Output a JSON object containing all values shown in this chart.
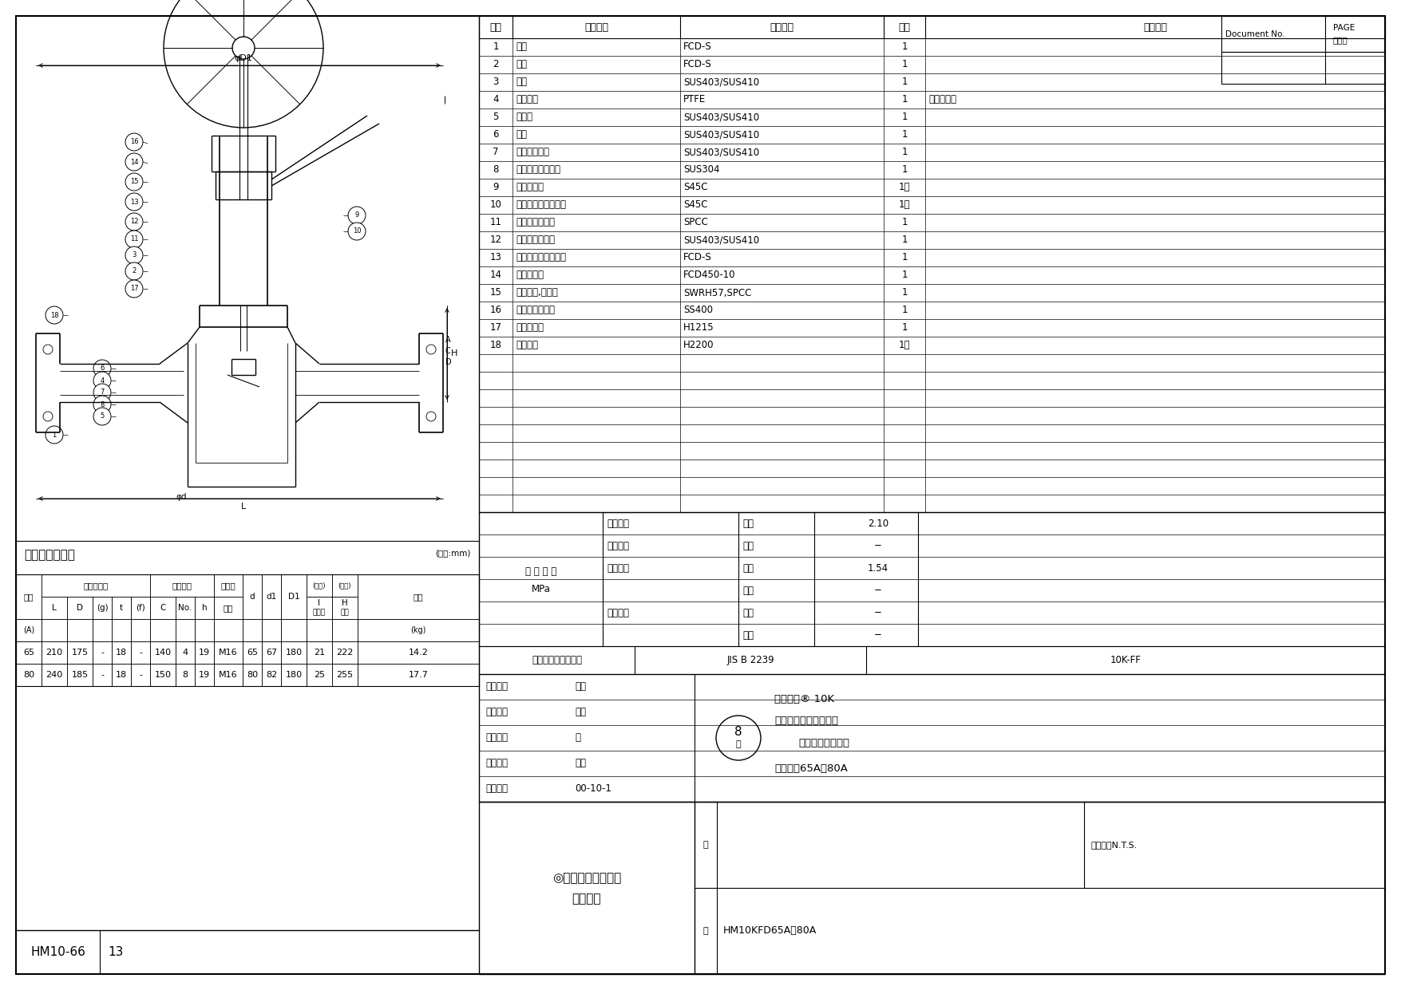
{
  "doc_no_label": "Document No.",
  "page_label": "PAGE\nページ",
  "parts_header": [
    "品番",
    "品　　名",
    "材　　質",
    "数量",
    "備　　考"
  ],
  "parts": [
    [
      "1",
      "弁算",
      "FCD-S",
      "1",
      ""
    ],
    [
      "2",
      "ふた",
      "FCD-S",
      "1",
      ""
    ],
    [
      "3",
      "弁棒",
      "SUS403/SUS410",
      "1",
      ""
    ],
    [
      "4",
      "ディスク",
      "PTFE",
      "1",
      "充填剤入り"
    ],
    [
      "5",
      "弁座輪",
      "SUS403/SUS410",
      "1",
      ""
    ],
    [
      "6",
      "弁体",
      "SUS403/SUS410",
      "1",
      ""
    ],
    [
      "7",
      "ディスク押え",
      "SUS403/SUS410",
      "1",
      ""
    ],
    [
      "8",
      "回り止め付ナット",
      "SUS304",
      "1",
      ""
    ],
    [
      "9",
      "ふたボルト",
      "S45C",
      "1組",
      ""
    ],
    [
      "10",
      "ふたボルト用ナット",
      "S45C",
      "1組",
      ""
    ],
    [
      "11",
      "パッキン受け輪",
      "SPCC",
      "1",
      ""
    ],
    [
      "12",
      "パッキン押え輪",
      "SUS403/SUS410",
      "1",
      ""
    ],
    [
      "13",
      "パッキン押えナット",
      "FCD-S",
      "1",
      ""
    ],
    [
      "14",
      "ハンドル車",
      "FCD450-10",
      "1",
      ""
    ],
    [
      "15",
      "ばね座金,平座金",
      "SWRH57,SPCC",
      "1",
      ""
    ],
    [
      "16",
      "ハンドルナット",
      "SS400",
      "1",
      ""
    ],
    [
      "17",
      "ガスケット",
      "H1215",
      "1",
      ""
    ],
    [
      "18",
      "パッキン",
      "H2200",
      "1組",
      ""
    ]
  ],
  "dimensions_title": "主　要　寸　法",
  "dimensions_unit": "(単位:mm)",
  "dim_data": [
    [
      "65",
      "210",
      "175",
      "-",
      "18",
      "-",
      "140",
      "4",
      "19",
      "M16",
      "65",
      "67",
      "180",
      "21",
      "222",
      "14.2"
    ],
    [
      "80",
      "240",
      "185",
      "-",
      "18",
      "-",
      "150",
      "8",
      "19",
      "M16",
      "80",
      "82",
      "180",
      "25",
      "255",
      "17.7"
    ]
  ],
  "inspection_rows": [
    [
      "弁算耒圧",
      "水圧",
      "2.10"
    ],
    [
      "弁算気密",
      "空圧",
      "−"
    ],
    [
      "弁座漏れ",
      "水圧",
      "1.54"
    ],
    [
      "",
      "空圧",
      "−"
    ],
    [
      "逆座漏れ",
      "水圧",
      "−"
    ],
    [
      "",
      "空圧",
      "−"
    ]
  ],
  "connection_label": "接　続　部　規　格",
  "connection_std": "JIS B 2239",
  "connection_spec": "10K-FF",
  "drawing_info": [
    [
      "製　図：",
      "中川"
    ],
    [
      "検　図：",
      "相原"
    ],
    [
      "審　査：",
      "阪"
    ],
    [
      "承　認：",
      "古川"
    ],
    [
      "日　付：",
      "00-10-1"
    ]
  ],
  "drawing_no": "HM10KFD65A・80A",
  "scale_label": "縮　尺：N.T.S.",
  "footer_left": "HM10-66",
  "footer_page": "13",
  "bg_color": "#ffffff"
}
